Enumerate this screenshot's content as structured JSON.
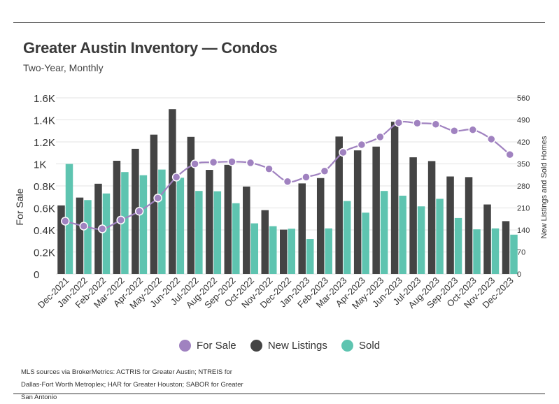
{
  "header": {
    "title": "Greater Austin Inventory — Condos",
    "subtitle": "Two-Year, Monthly"
  },
  "footer": {
    "source": "MLS sources via BrokerMetrics: ACTRIS for Greater Austin; NTREIS for Dallas-Fort Worth Metroplex; HAR for Greater Houston; SABOR for Greater San Antonio"
  },
  "colors": {
    "for_sale": "#a082c0",
    "new_listings": "#444444",
    "sold": "#5ec4b0",
    "grid": "#e3e3e3"
  },
  "chart_data": {
    "type": "bar",
    "combo": "bars with line on secondary axis",
    "title": "Greater Austin Inventory — Condos",
    "subtitle": "Two-Year, Monthly",
    "ylabel": "For Sale",
    "ylabel_right": "New Listings and Sold Homes",
    "ylim": [
      0,
      1600
    ],
    "ylim_right": [
      0,
      560
    ],
    "yticks": [
      "0",
      "0.2K",
      "0.4K",
      "0.6K",
      "0.8K",
      "1K",
      "1.2K",
      "1.4K",
      "1.6K"
    ],
    "yticks_right": [
      "0",
      "70",
      "140",
      "210",
      "280",
      "350",
      "420",
      "490",
      "560"
    ],
    "grid": true,
    "legend_position": "bottom",
    "categories": [
      "Dec-2021",
      "Jan-2022",
      "Feb-2022",
      "Mar-2022",
      "Apr-2022",
      "May-2022",
      "Jun-2022",
      "Jul-2022",
      "Aug-2022",
      "Sep-2022",
      "Oct-2022",
      "Nov-2022",
      "Dec-2022",
      "Jan-2023",
      "Feb-2023",
      "Mar-2023",
      "Apr-2023",
      "May-2023",
      "Jun-2023",
      "Jul-2023",
      "Aug-2023",
      "Sep-2023",
      "Oct-2023",
      "Nov-2023",
      "Dec-2023"
    ],
    "series": [
      {
        "name": "For Sale",
        "kind": "line",
        "axis": "left",
        "values": [
          480,
          435,
          410,
          490,
          570,
          690,
          880,
          1000,
          1015,
          1020,
          1010,
          955,
          840,
          880,
          935,
          1105,
          1175,
          1245,
          1375,
          1370,
          1360,
          1300,
          1310,
          1225,
          1085
        ]
      },
      {
        "name": "New Listings",
        "kind": "bar",
        "axis": "right",
        "values": [
          218,
          243,
          287,
          360,
          398,
          443,
          524,
          436,
          331,
          347,
          278,
          203,
          141,
          288,
          305,
          437,
          393,
          405,
          484,
          371,
          359,
          310,
          308,
          221,
          168
        ]
      },
      {
        "name": "Sold",
        "kind": "bar",
        "axis": "right",
        "values": [
          350,
          235,
          256,
          324,
          314,
          332,
          306,
          264,
          263,
          225,
          161,
          152,
          144,
          111,
          145,
          232,
          195,
          264,
          249,
          215,
          239,
          178,
          142,
          145,
          125
        ]
      }
    ]
  }
}
